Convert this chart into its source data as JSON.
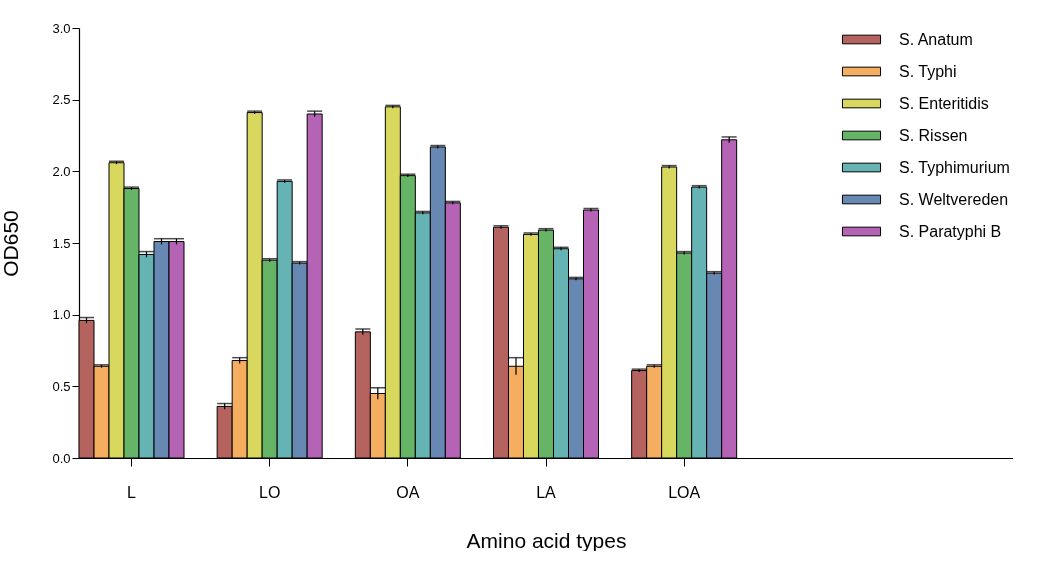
{
  "chart_data": {
    "type": "bar",
    "xlabel": "Amino acid types",
    "ylabel": "OD650",
    "categories": [
      "L",
      "LO",
      "OA",
      "LA",
      "LOA"
    ],
    "ylim": [
      0,
      3
    ],
    "yticks": [
      {
        "value": 0,
        "label": "0.0"
      },
      {
        "value": 0.5,
        "label": "0.5"
      },
      {
        "value": 1,
        "label": "1.0"
      },
      {
        "value": 1.5,
        "label": "1.5"
      },
      {
        "value": 2,
        "label": "2.0"
      },
      {
        "value": 2.5,
        "label": "2.5"
      },
      {
        "value": 3,
        "label": "3.0"
      }
    ],
    "grid": false,
    "legend": "top right",
    "series": [
      {
        "name": "S. Anatum",
        "color": "#b5635f",
        "values": [
          0.96,
          0.36,
          0.88,
          1.61,
          0.61
        ],
        "errors": [
          0.02,
          0.02,
          0.02,
          0.01,
          0.01
        ]
      },
      {
        "name": "S. Typhi",
        "color": "#f5ad5f",
        "values": [
          0.64,
          0.68,
          0.45,
          0.64,
          0.64
        ],
        "errors": [
          0.01,
          0.02,
          0.04,
          0.06,
          0.01
        ]
      },
      {
        "name": "S. Enteritidis",
        "color": "#d9d85e",
        "values": [
          2.06,
          2.41,
          2.45,
          1.56,
          2.03
        ],
        "errors": [
          0.01,
          0.01,
          0.01,
          0.01,
          0.01
        ]
      },
      {
        "name": "S. Rissen",
        "color": "#66b466",
        "values": [
          1.88,
          1.38,
          1.97,
          1.59,
          1.43
        ],
        "errors": [
          0.01,
          0.01,
          0.01,
          0.01,
          0.01
        ]
      },
      {
        "name": "S. Typhimurium",
        "color": "#66b3b3",
        "values": [
          1.42,
          1.93,
          1.71,
          1.46,
          1.89
        ],
        "errors": [
          0.02,
          0.01,
          0.01,
          0.01,
          0.01
        ]
      },
      {
        "name": "S. Weltvereden",
        "color": "#6688b3",
        "values": [
          1.51,
          1.36,
          2.17,
          1.25,
          1.29
        ],
        "errors": [
          0.02,
          0.01,
          0.01,
          0.01,
          0.01
        ]
      },
      {
        "name": "S. Paratyphi B",
        "color": "#b563b5",
        "values": [
          1.51,
          2.4,
          1.78,
          1.73,
          2.22
        ],
        "errors": [
          0.02,
          0.02,
          0.01,
          0.01,
          0.02
        ]
      }
    ]
  }
}
